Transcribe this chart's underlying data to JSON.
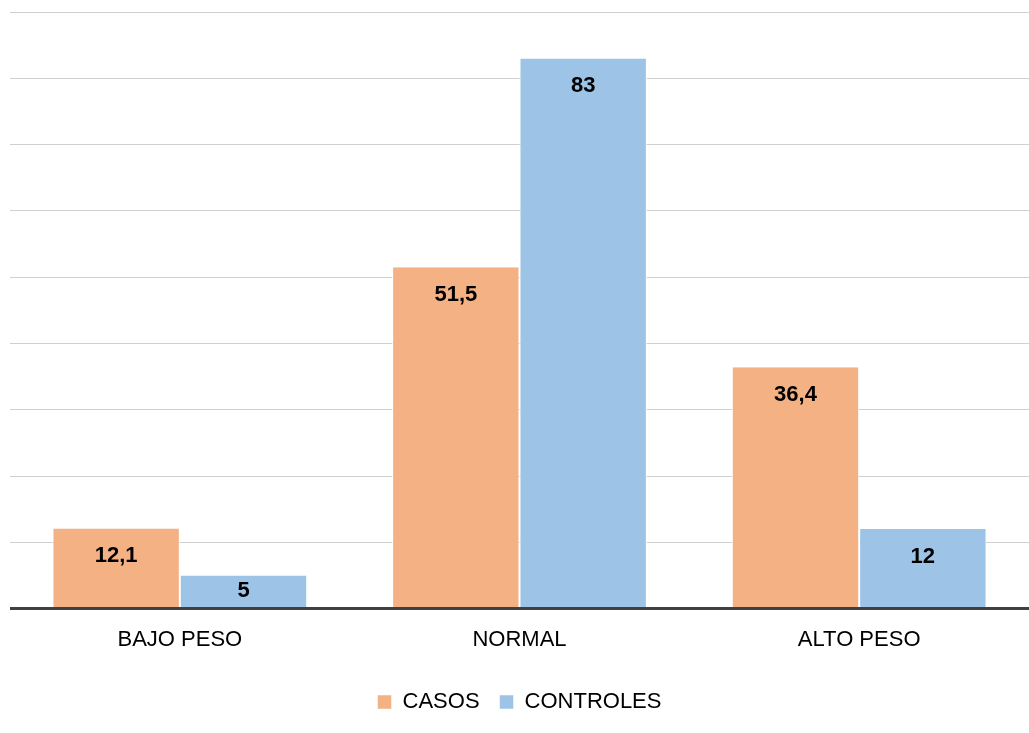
{
  "chart_data": {
    "type": "bar",
    "categories": [
      "BAJO PESO",
      "NORMAL",
      "ALTO PESO"
    ],
    "series": [
      {
        "name": "CASOS",
        "color": "#f4b183",
        "values": [
          12.1,
          51.5,
          36.4
        ],
        "value_labels": [
          "12,1",
          "51,5",
          "36,4"
        ]
      },
      {
        "name": "CONTROLES",
        "color": "#9dc3e6",
        "values": [
          5,
          83,
          12
        ],
        "value_labels": [
          "5",
          "83",
          "12"
        ]
      }
    ],
    "ylim": [
      0,
      90
    ],
    "yticks": [
      {
        "value": 0,
        "label": null
      },
      {
        "value": 10,
        "label": null
      },
      {
        "value": 20,
        "label": null
      },
      {
        "value": 30,
        "label": null
      },
      {
        "value": 40,
        "label": null
      },
      {
        "value": 50,
        "label": null
      },
      {
        "value": 60,
        "label": null
      },
      {
        "value": 70,
        "label": null
      },
      {
        "value": 80,
        "label": null
      },
      {
        "value": 90,
        "label": null
      }
    ],
    "grid": "y",
    "legend": "bottom",
    "tick_labels": "x"
  }
}
